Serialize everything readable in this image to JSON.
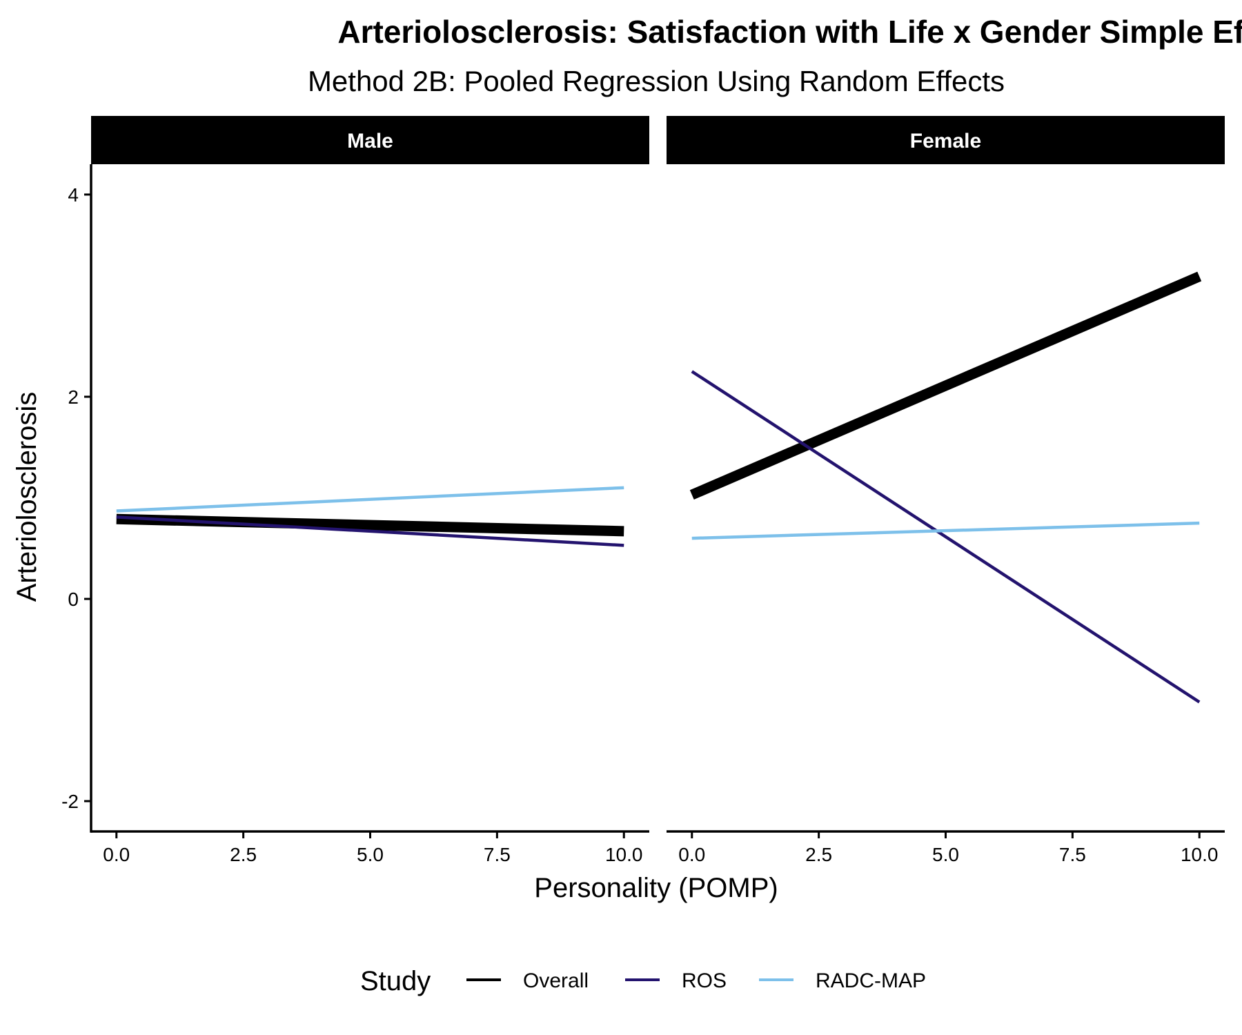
{
  "chart_data": {
    "type": "line",
    "title": "Arteriolosclerosis: Satisfaction with Life x Gender Simple Effects",
    "subtitle": "Method 2B: Pooled Regression Using Random Effects",
    "xlabel": "Personality (POMP)",
    "ylabel": "Arteriolosclerosis",
    "xlim": [
      -0.5,
      10.5
    ],
    "ylim": [
      -2.3,
      4.3
    ],
    "xticks": [
      0,
      2.5,
      5,
      7.5,
      10
    ],
    "xtick_labels": [
      "0.0",
      "2.5",
      "5.0",
      "7.5",
      "10.0"
    ],
    "yticks": [
      -2,
      0,
      2,
      4
    ],
    "ytick_labels": [
      "-2",
      "0",
      "2",
      "4"
    ],
    "grid": false,
    "legend": {
      "title": "Study",
      "position": "bottom",
      "entries": [
        "Overall",
        "ROS",
        "RADC-MAP"
      ]
    },
    "panels": [
      {
        "label": "Male",
        "series": [
          {
            "name": "Overall",
            "color": "#000000",
            "weight": "thick",
            "x": [
              0,
              10
            ],
            "y": [
              0.79,
              0.67
            ]
          },
          {
            "name": "ROS",
            "color": "#23136e",
            "weight": "thin",
            "x": [
              0,
              10
            ],
            "y": [
              0.81,
              0.53
            ]
          },
          {
            "name": "RADC-MAP",
            "color": "#7dc0ea",
            "weight": "thin",
            "x": [
              0,
              10
            ],
            "y": [
              0.87,
              1.1
            ]
          }
        ]
      },
      {
        "label": "Female",
        "series": [
          {
            "name": "Overall",
            "color": "#000000",
            "weight": "thick",
            "x": [
              0,
              10
            ],
            "y": [
              1.03,
              3.19
            ]
          },
          {
            "name": "ROS",
            "color": "#23136e",
            "weight": "thin",
            "x": [
              0,
              10
            ],
            "y": [
              2.25,
              -1.02
            ]
          },
          {
            "name": "RADC-MAP",
            "color": "#7dc0ea",
            "weight": "thin",
            "x": [
              0,
              10
            ],
            "y": [
              0.6,
              0.75
            ]
          }
        ]
      }
    ]
  }
}
